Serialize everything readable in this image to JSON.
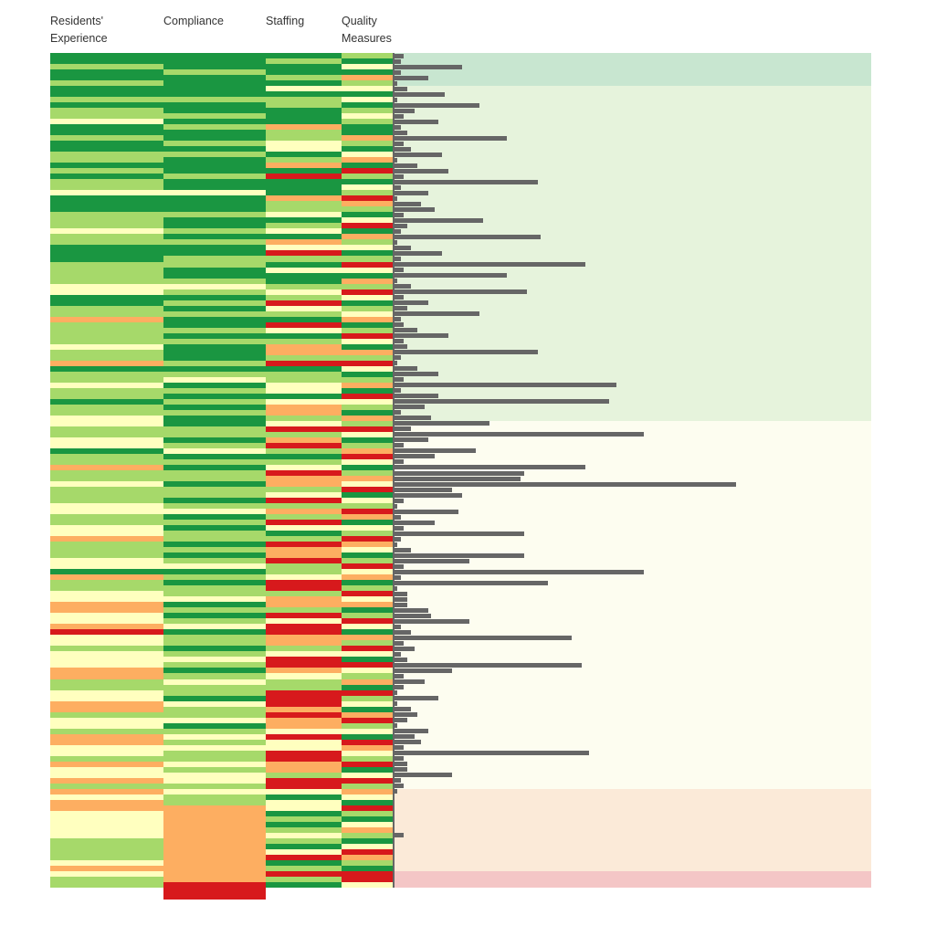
{
  "chart_data": {
    "type": "heatmap",
    "columns": [
      "Residents' Experience",
      "Compliance",
      "Staffing",
      "Quality Measures"
    ],
    "legend": {
      "G": "#1a9641",
      "L": "#a6d96a",
      "Y": "#ffffbf",
      "O": "#fdae61",
      "R": "#d7191c"
    },
    "rows": 152,
    "cells": [
      "GGLGGLGGLGLLYGGLGGLLGLGLLYGGGLLLYLLGGGLLLLYYGGLLOLLLLYLLOGLLYLLGLLYYLLYYGLLOLLYLLLYYLLYYOLLLYYGOLLYYOOYYORYYLYYYOOLLYYOOLYYLOOYYLOYYOLOYOOYYYYYLLLLYOYLL",
      "GGGLGGGGLGGLGLGGLGLGGGLGGYGGGLGGLGLGGLLGGLYLGLGLGGLGLGGGLGLYGLGLGLGGLLGLYGLGLLGLLGLYGLGLLGLGLYGLGLLYGLGLYGLLGLYLGLYLLGYLLYGLYLYLLYLYYLYLLOOOOOOOOOOOOOORRR",
      "GLGGLGYGLLGGGOLLYYGLOGRGGGOLLYGLYGOYRLGYGGLYLRYLGRYGLOOLRGLLYYGYOOLYRLORLGLYROOLYRLOLRYGLROORLLYRRLOOLRYRROOLYRROYLLRRROROOYRYYRROOLRRYGYYGLGLYLGYRGLRLG",
      "LGYGOLYGYGLYLGGOLGYOGRLGYLROLGYRGOLYGLRYGOLRYGLYOGLRYGOLRYGLOGRYLGOLRYGLORYGLOYRGYLROGYLROYGLRYOGLRYOGLRYGOLRYGRYLOGRLYGORLYGROYLRGYRLOYGRLGYOLGYROLGRRY"
    ],
    "bars": [
      3,
      2,
      20,
      2,
      10,
      1,
      4,
      15,
      1,
      25,
      6,
      3,
      13,
      2,
      4,
      33,
      3,
      5,
      14,
      1,
      7,
      16,
      3,
      42,
      2,
      10,
      1,
      8,
      12,
      3,
      26,
      4,
      2,
      43,
      1,
      5,
      14,
      2,
      56,
      3,
      33,
      1,
      5,
      39,
      3,
      10,
      4,
      25,
      2,
      3,
      7,
      16,
      3,
      4,
      42,
      2,
      1,
      7,
      13,
      3,
      65,
      2,
      13,
      63,
      9,
      2,
      11,
      28,
      5,
      73,
      10,
      3,
      24,
      12,
      3,
      56,
      38,
      37,
      100,
      17,
      20,
      3,
      1,
      19,
      2,
      12,
      3,
      38,
      2,
      1,
      5,
      38,
      22,
      3,
      73,
      2,
      45,
      1,
      4,
      4,
      4,
      10,
      11,
      22,
      2,
      5,
      52,
      3,
      6,
      2,
      4,
      55,
      17,
      3,
      9,
      3,
      1,
      13,
      1,
      5,
      7,
      4,
      1,
      10,
      6,
      8,
      3,
      57,
      3,
      4,
      4,
      17,
      2,
      3,
      1,
      0,
      0,
      0,
      0,
      0,
      0,
      0,
      3,
      0,
      0,
      0,
      0,
      0,
      0,
      0,
      0,
      0
    ],
    "bands": [
      {
        "rows": 6,
        "color": "#c8e6d0"
      },
      {
        "rows": 61,
        "color": "#e6f3dc"
      },
      {
        "rows": 67,
        "color": "#fdfdf0"
      },
      {
        "rows": 15,
        "color": "#fbead8"
      },
      {
        "rows": 3,
        "color": "#f4c6c6"
      }
    ],
    "bar_color": "#666666"
  },
  "headers": {
    "re": "Residents'\nExperience",
    "comp": "Compliance",
    "staff": "Staffing",
    "qm": "Quality\nMeasures"
  }
}
